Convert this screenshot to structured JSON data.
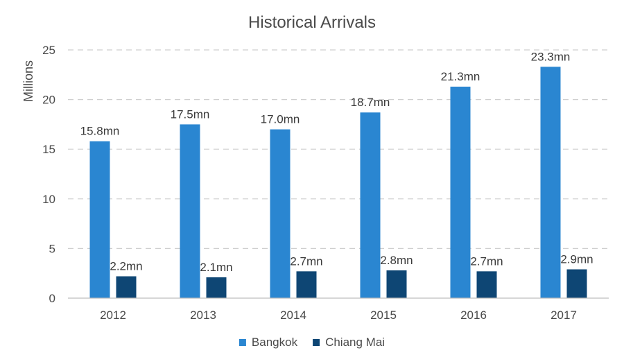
{
  "chart_data": {
    "type": "bar",
    "title": "Historical Arrivals",
    "ylabel": "Millions",
    "xlabel": "",
    "ylim": [
      0,
      25
    ],
    "yticks": [
      0,
      5,
      10,
      15,
      20,
      25
    ],
    "grid": true,
    "legend_position": "bottom",
    "categories": [
      "2012",
      "2013",
      "2014",
      "2015",
      "2016",
      "2017"
    ],
    "series": [
      {
        "name": "Bangkok",
        "color": "#2a86d1",
        "values": [
          15.8,
          17.5,
          17.0,
          18.7,
          21.3,
          23.3
        ],
        "labels": [
          "15.8mn",
          "17.5mn",
          "17.0mn",
          "18.7mn",
          "21.3mn",
          "23.3mn"
        ]
      },
      {
        "name": "Chiang Mai",
        "color": "#0e4674",
        "values": [
          2.2,
          2.1,
          2.7,
          2.8,
          2.7,
          2.9
        ],
        "labels": [
          "2.2mn",
          "2.1mn",
          "2.7mn",
          "2.8mn",
          "2.7mn",
          "2.9mn"
        ]
      }
    ]
  }
}
